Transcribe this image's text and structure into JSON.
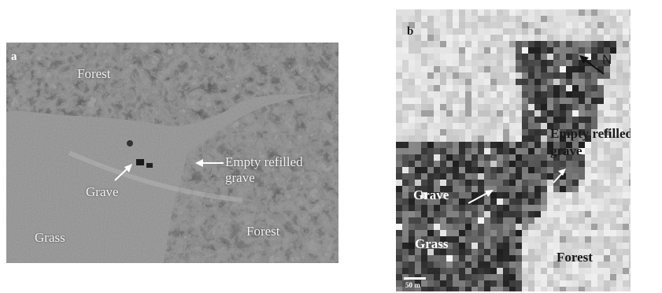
{
  "panel_a": {
    "letter": "a",
    "labels": {
      "forest_top": "Forest",
      "grave": "Grave",
      "empty_refilled_grave_line1": "Empty refilled",
      "empty_refilled_grave_line2": "grave",
      "grass": "Grass",
      "forest_bottom": "Forest"
    }
  },
  "panel_b": {
    "letter": "b",
    "labels": {
      "north": "N",
      "empty_refilled_grave_line1": "Empty refilled",
      "empty_refilled_grave_line2": "grave",
      "grave": "Grave",
      "grass": "Grass",
      "forest": "Forest"
    },
    "scale_label": "50 m"
  },
  "colors": {
    "forest_dark": "#2a2a2a",
    "grass_gray": "#8c8c8c",
    "forest_light_b": "#dcdcdc",
    "arrow_white": "#ffffff",
    "arrow_black": "#111111"
  }
}
